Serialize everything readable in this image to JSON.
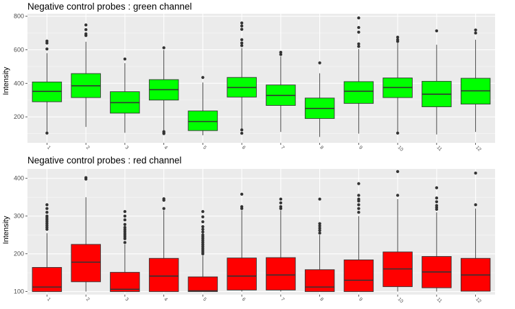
{
  "chart_data": [
    {
      "type": "box",
      "title": "Negative control probes : green channel",
      "ylabel": "Intensity",
      "xlabel": "",
      "fill_color": "#00ff00",
      "ylim": [
        45,
        815
      ],
      "yticks": [
        200,
        400,
        600,
        800
      ],
      "grid": true,
      "categories": [
        "1",
        "2",
        "3",
        "4",
        "5",
        "6",
        "7",
        "8",
        "9",
        "10",
        "11",
        "12"
      ],
      "boxes": [
        {
          "min": 110,
          "q1": 290,
          "median": 352,
          "q3": 408,
          "max": 580,
          "outliers": [
            103,
            605,
            640,
            652
          ]
        },
        {
          "min": 140,
          "q1": 315,
          "median": 385,
          "q3": 458,
          "max": 648,
          "outliers": [
            685,
            695,
            720,
            748
          ]
        },
        {
          "min": 105,
          "q1": 222,
          "median": 285,
          "q3": 350,
          "max": 520,
          "outliers": [
            545
          ]
        },
        {
          "min": 120,
          "q1": 300,
          "median": 362,
          "q3": 422,
          "max": 598,
          "outliers": [
            100,
            105,
            112,
            612
          ]
        },
        {
          "min": 90,
          "q1": 118,
          "median": 172,
          "q3": 235,
          "max": 405,
          "outliers": [
            435
          ]
        },
        {
          "min": 130,
          "q1": 318,
          "median": 375,
          "q3": 435,
          "max": 610,
          "outliers": [
            102,
            122,
            625,
            640,
            660,
            722,
            742,
            760
          ]
        },
        {
          "min": 110,
          "q1": 268,
          "median": 328,
          "q3": 390,
          "max": 560,
          "outliers": [
            572,
            585
          ]
        },
        {
          "min": 80,
          "q1": 190,
          "median": 250,
          "q3": 312,
          "max": 460,
          "outliers": [
            522
          ]
        },
        {
          "min": 100,
          "q1": 280,
          "median": 353,
          "q3": 410,
          "max": 605,
          "outliers": [
            620,
            635,
            705,
            733,
            790
          ]
        },
        {
          "min": 110,
          "q1": 315,
          "median": 375,
          "q3": 432,
          "max": 640,
          "outliers": [
            103,
            650,
            660,
            675
          ]
        },
        {
          "min": 95,
          "q1": 260,
          "median": 335,
          "q3": 412,
          "max": 630,
          "outliers": [
            713
          ]
        },
        {
          "min": 110,
          "q1": 276,
          "median": 355,
          "q3": 430,
          "max": 660,
          "outliers": [
            700,
            718
          ]
        }
      ]
    },
    {
      "type": "box",
      "title": "Negative control probes : red channel",
      "ylabel": "Intensity",
      "xlabel": "",
      "fill_color": "#ff0000",
      "ylim": [
        92,
        425
      ],
      "yticks": [
        100,
        200,
        300,
        400
      ],
      "grid": true,
      "categories": [
        "1",
        "2",
        "3",
        "4",
        "5",
        "6",
        "7",
        "8",
        "9",
        "10",
        "11",
        "12"
      ],
      "boxes": [
        {
          "min": 100,
          "q1": 100,
          "median": 112,
          "q3": 164,
          "max": 255,
          "outliers": [
            265,
            270,
            275,
            280,
            285,
            290,
            295,
            300,
            310,
            320,
            330
          ]
        },
        {
          "min": 100,
          "q1": 126,
          "median": 178,
          "q3": 225,
          "max": 350,
          "outliers": [
            398,
            402
          ]
        },
        {
          "min": 100,
          "q1": 100,
          "median": 106,
          "q3": 151,
          "max": 225,
          "outliers": [
            230,
            240,
            245,
            250,
            255,
            260,
            265,
            270,
            278,
            290,
            300,
            312
          ]
        },
        {
          "min": 100,
          "q1": 100,
          "median": 141,
          "q3": 188,
          "max": 315,
          "outliers": [
            320,
            342,
            346
          ]
        },
        {
          "min": 100,
          "q1": 100,
          "median": 102,
          "q3": 139,
          "max": 195,
          "outliers": [
            200,
            205,
            210,
            215,
            220,
            225,
            230,
            235,
            240,
            245,
            250,
            258,
            265,
            272,
            285,
            298,
            312
          ]
        },
        {
          "min": 100,
          "q1": 104,
          "median": 141,
          "q3": 189,
          "max": 315,
          "outliers": [
            320,
            325,
            358
          ]
        },
        {
          "min": 100,
          "q1": 104,
          "median": 144,
          "q3": 190,
          "max": 315,
          "outliers": [
            320,
            325,
            335,
            345
          ]
        },
        {
          "min": 100,
          "q1": 100,
          "median": 112,
          "q3": 158,
          "max": 250,
          "outliers": [
            255,
            262,
            268,
            274,
            280,
            345
          ]
        },
        {
          "min": 100,
          "q1": 100,
          "median": 130,
          "q3": 184,
          "max": 300,
          "outliers": [
            310,
            320,
            330,
            340,
            345,
            355,
            386
          ]
        },
        {
          "min": 100,
          "q1": 113,
          "median": 160,
          "q3": 205,
          "max": 345,
          "outliers": [
            355,
            418
          ]
        },
        {
          "min": 100,
          "q1": 110,
          "median": 152,
          "q3": 193,
          "max": 310,
          "outliers": [
            318,
            323,
            328,
            338,
            348,
            375
          ]
        },
        {
          "min": 100,
          "q1": 101,
          "median": 144,
          "q3": 188,
          "max": 320,
          "outliers": [
            330,
            414
          ]
        }
      ]
    }
  ]
}
